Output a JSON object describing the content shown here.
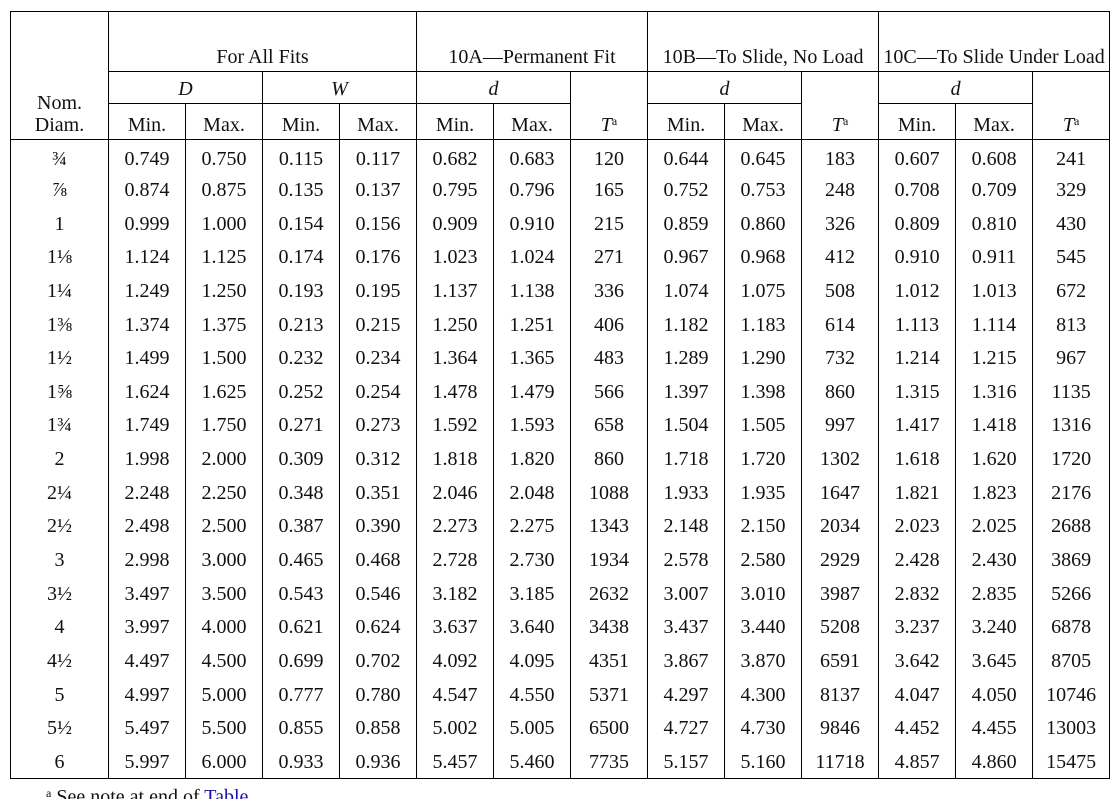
{
  "table": {
    "header": {
      "nom_diam": [
        "Nom.",
        "Diam."
      ],
      "groups": [
        "For All Fits",
        "10A—Permanent Fit",
        "10B—To Slide, No Load",
        "10C—To Slide Under Load"
      ],
      "subgroups": [
        "D",
        "W",
        "d",
        "d",
        "d"
      ],
      "t_labels": [
        {
          "text": "T",
          "sup": "a"
        },
        {
          "text": "T",
          "sup": "a"
        },
        {
          "text": "T",
          "sup": "a"
        }
      ],
      "minmax": [
        "Min.",
        "Max.",
        "Min.",
        "Max.",
        "Min.",
        "Max.",
        "Min.",
        "Max.",
        "Min.",
        "Max."
      ]
    },
    "rows": [
      [
        "¾",
        "0.749",
        "0.750",
        "0.115",
        "0.117",
        "0.682",
        "0.683",
        "120",
        "0.644",
        "0.645",
        "183",
        "0.607",
        "0.608",
        "241"
      ],
      [
        "⅞",
        "0.874",
        "0.875",
        "0.135",
        "0.137",
        "0.795",
        "0.796",
        "165",
        "0.752",
        "0.753",
        "248",
        "0.708",
        "0.709",
        "329"
      ],
      [
        "1",
        "0.999",
        "1.000",
        "0.154",
        "0.156",
        "0.909",
        "0.910",
        "215",
        "0.859",
        "0.860",
        "326",
        "0.809",
        "0.810",
        "430"
      ],
      [
        "1⅛",
        "1.124",
        "1.125",
        "0.174",
        "0.176",
        "1.023",
        "1.024",
        "271",
        "0.967",
        "0.968",
        "412",
        "0.910",
        "0.911",
        "545"
      ],
      [
        "1¼",
        "1.249",
        "1.250",
        "0.193",
        "0.195",
        "1.137",
        "1.138",
        "336",
        "1.074",
        "1.075",
        "508",
        "1.012",
        "1.013",
        "672"
      ],
      [
        "1⅜",
        "1.374",
        "1.375",
        "0.213",
        "0.215",
        "1.250",
        "1.251",
        "406",
        "1.182",
        "1.183",
        "614",
        "1.113",
        "1.114",
        "813"
      ],
      [
        "1½",
        "1.499",
        "1.500",
        "0.232",
        "0.234",
        "1.364",
        "1.365",
        "483",
        "1.289",
        "1.290",
        "732",
        "1.214",
        "1.215",
        "967"
      ],
      [
        "1⅝",
        "1.624",
        "1.625",
        "0.252",
        "0.254",
        "1.478",
        "1.479",
        "566",
        "1.397",
        "1.398",
        "860",
        "1.315",
        "1.316",
        "1135"
      ],
      [
        "1¾",
        "1.749",
        "1.750",
        "0.271",
        "0.273",
        "1.592",
        "1.593",
        "658",
        "1.504",
        "1.505",
        "997",
        "1.417",
        "1.418",
        "1316"
      ],
      [
        "2",
        "1.998",
        "2.000",
        "0.309",
        "0.312",
        "1.818",
        "1.820",
        "860",
        "1.718",
        "1.720",
        "1302",
        "1.618",
        "1.620",
        "1720"
      ],
      [
        "2¼",
        "2.248",
        "2.250",
        "0.348",
        "0.351",
        "2.046",
        "2.048",
        "1088",
        "1.933",
        "1.935",
        "1647",
        "1.821",
        "1.823",
        "2176"
      ],
      [
        "2½",
        "2.498",
        "2.500",
        "0.387",
        "0.390",
        "2.273",
        "2.275",
        "1343",
        "2.148",
        "2.150",
        "2034",
        "2.023",
        "2.025",
        "2688"
      ],
      [
        "3",
        "2.998",
        "3.000",
        "0.465",
        "0.468",
        "2.728",
        "2.730",
        "1934",
        "2.578",
        "2.580",
        "2929",
        "2.428",
        "2.430",
        "3869"
      ],
      [
        "3½",
        "3.497",
        "3.500",
        "0.543",
        "0.546",
        "3.182",
        "3.185",
        "2632",
        "3.007",
        "3.010",
        "3987",
        "2.832",
        "2.835",
        "5266"
      ],
      [
        "4",
        "3.997",
        "4.000",
        "0.621",
        "0.624",
        "3.637",
        "3.640",
        "3438",
        "3.437",
        "3.440",
        "5208",
        "3.237",
        "3.240",
        "6878"
      ],
      [
        "4½",
        "4.497",
        "4.500",
        "0.699",
        "0.702",
        "4.092",
        "4.095",
        "4351",
        "3.867",
        "3.870",
        "6591",
        "3.642",
        "3.645",
        "8705"
      ],
      [
        "5",
        "4.997",
        "5.000",
        "0.777",
        "0.780",
        "4.547",
        "4.550",
        "5371",
        "4.297",
        "4.300",
        "8137",
        "4.047",
        "4.050",
        "10746"
      ],
      [
        "5½",
        "5.497",
        "5.500",
        "0.855",
        "0.858",
        "5.002",
        "5.005",
        "6500",
        "4.727",
        "4.730",
        "9846",
        "4.452",
        "4.455",
        "13003"
      ],
      [
        "6",
        "5.997",
        "6.000",
        "0.933",
        "0.936",
        "5.457",
        "5.460",
        "7735",
        "5.157",
        "5.160",
        "11718",
        "4.857",
        "4.860",
        "15475"
      ]
    ],
    "footnote": {
      "marker": "a",
      "text": "See note at end of",
      "link": "Table"
    }
  }
}
